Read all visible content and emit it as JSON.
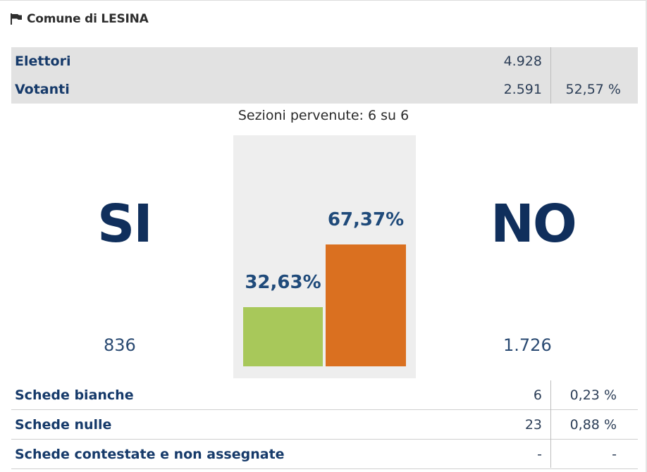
{
  "header": {
    "title": "Comune di LESINA",
    "icon": "flag-icon"
  },
  "summary": {
    "rows": [
      {
        "label": "Elettori",
        "value": "4.928",
        "percent": ""
      },
      {
        "label": "Votanti",
        "value": "2.591",
        "percent": "52,57 %"
      }
    ]
  },
  "sezioni": "Sezioni pervenute: 6 su 6",
  "results": {
    "si": {
      "label": "SI",
      "count": "836",
      "percent": "32,63%"
    },
    "no": {
      "label": "NO",
      "count": "1.726",
      "percent": "67,37%"
    }
  },
  "chart_data": {
    "type": "bar",
    "categories": [
      "SI",
      "NO"
    ],
    "values": [
      32.63,
      67.37
    ],
    "data_labels": [
      "32,63%",
      "67,37%"
    ],
    "colors": [
      "#a8c85a",
      "#da7020"
    ],
    "ylim": [
      0,
      100
    ],
    "title": "",
    "xlabel": "",
    "ylabel": ""
  },
  "stats": {
    "rows": [
      {
        "label": "Schede bianche",
        "value": "6",
        "percent": "0,23 %"
      },
      {
        "label": "Schede nulle",
        "value": "23",
        "percent": "0,88 %"
      },
      {
        "label": "Schede contestate e non assegnate",
        "value": "-",
        "percent": "-"
      }
    ]
  }
}
